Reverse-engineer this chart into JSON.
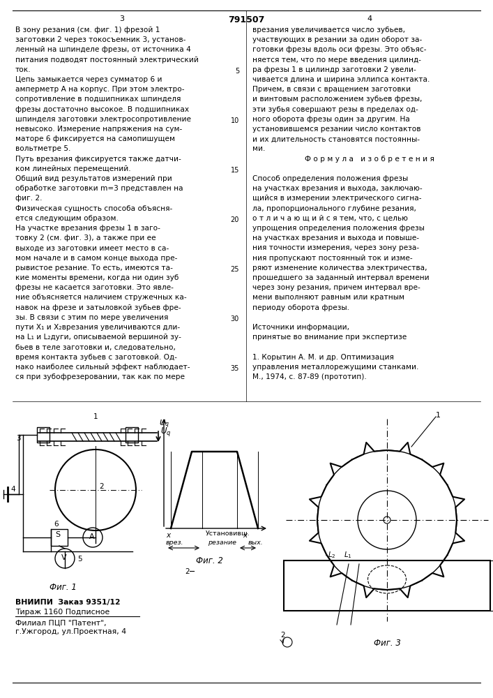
{
  "page_color": "#ffffff",
  "title_center": "791507",
  "page_left_num": "3",
  "page_right_num": "4",
  "col1_lines": [
    "В зону резания (см. фиг. 1) фрезой 1",
    "заготовки 2 через токосъемник 3, установ-",
    "ленный на шпинделе фрезы, от источника 4",
    "питания подводят постоянный электрический",
    "ток.",
    "Цепь замыкается через сумматор 6 и",
    "амперметр А на корпус. При этом электро-",
    "сопротивление в подшипниках шпинделя",
    "фрезы достаточно высокое. В подшипниках",
    "шпинделя заготовки электросопротивление",
    "невысоко. Измерение напряжения на сум-",
    "маторе 6 фиксируется на самопишущем",
    "вольтметре 5.",
    "Путь врезания фиксируется также датчи-",
    "ком линейных перемещений.",
    "Общий вид результатов измерений при",
    "обработке заготовки m=3 представлен на",
    "фиг. 2.",
    "Физическая сущность способа объясня-",
    "ется следующим образом.",
    "На участке врезания фрезы 1 в заго-",
    "товку 2 (см. фиг. 3), а также при ее",
    "выходе из заготовки имеет место в са-",
    "мом начале и в самом конце выхода пре-",
    "рывистое резание. То есть, имеются та-",
    "кие моменты времени, когда ни один зуб",
    "фрезы не касается заготовки. Это явле-",
    "ние объясняется наличием стружечных ка-",
    "навок на фрезе и затыловкой зубьев фре-",
    "зы. В связи с этим по мере увеличения",
    "пути X₁ и X₂врезания увеличиваются дли-",
    "на L₁ и L₂дуги, описываемой вершиной зу-",
    "бьев в теле заготовки и, следовательно,",
    "время контакта зубьев с заготовкой. Од-",
    "нако наиболее сильный эффект наблюдает-",
    "ся при зубофрезеровании, так как по мере"
  ],
  "col2_lines": [
    "врезания увеличивается число зубьев,",
    "участвующих в резании за один оборот за-",
    "готовки фрезы вдоль оси фрезы. Это объяс-",
    "няется тем, что по мере введения цилинд-",
    "ра фрезы 1 в цилиндр заготовки 2 увели-",
    "чивается длина и ширина эллипса контакта.",
    "Причем, в связи с вращением заготовки",
    "и винтовым расположением зубьев фрезы,",
    "эти зубья совершают резы в пределах од-",
    "ного оборота фрезы один за другим. На",
    "установившемся резании число контактов",
    "и их длительность становятся постоянны-",
    "ми.",
    "Ф о р м у л а   и з о б р е т е н и я",
    "",
    "Способ определения положения фрезы",
    "на участках врезания и выхода, заключаю-",
    "щийся в измерении электрического сигна-",
    "ла, пропорционального глубине резания,",
    "о т л и ч а ю щ и й с я тем, что, с целью",
    "упрощения определения положения фрезы",
    "на участках врезания и выхода и повыше-",
    "ния точности измерения, через зону реза-",
    "ния пропускают постоянный ток и изме-",
    "ряют изменение количества электричества,",
    "прошедшего за заданный интервал времени",
    "через зону резания, причем интервал вре-",
    "мени выполняют равным или кратным",
    "периоду оборота фрезы.",
    "",
    "Источники информации,",
    "принятые во внимание при экспертизе",
    "",
    "1. Корытин А. М. и др. Оптимизация",
    "управления металлорежущими станками.",
    "М., 1974, с. 87-89 (прототип)."
  ],
  "bottom_left_lines": [
    "ВНИИПИ  Заказ 9351/12",
    "Тираж 1160 Подписное",
    "Филиал ПЦП \"Патент\",",
    "г.Ужгород, ул.Проектная, 4"
  ],
  "line_numbers": [
    "5",
    "10",
    "15",
    "20",
    "25",
    "30",
    "35"
  ],
  "fig1_label": "Фиг. 1",
  "fig2_label": "Фиг. 2",
  "fig3_label": "Фиг. 3"
}
